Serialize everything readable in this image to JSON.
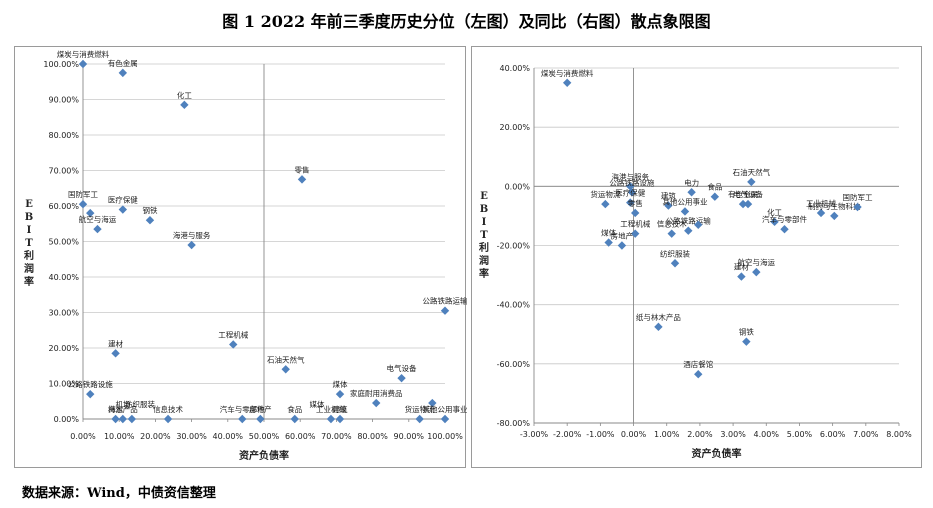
{
  "title": "图 1    2022 年前三季度历史分位（左图）及同比（右图）散点象限图",
  "source": "数据来源：Wind，中债资信整理",
  "chart_data": [
    {
      "type": "scatter",
      "xlabel": "资产负债率",
      "ylabel": "EBIT利润率",
      "xlim": [
        0,
        1
      ],
      "ylim": [
        0,
        1
      ],
      "x_ticks": [
        "0.00%",
        "10.00%",
        "20.00%",
        "30.00%",
        "40.00%",
        "50.00%",
        "60.00%",
        "70.00%",
        "80.00%",
        "90.00%",
        "100.00%"
      ],
      "y_ticks": [
        "0.00%",
        "10.00%",
        "20.00%",
        "30.00%",
        "40.00%",
        "50.00%",
        "60.00%",
        "70.00%",
        "80.00%",
        "90.00%",
        "100.00%"
      ],
      "marker_color": "#4f81bd",
      "points": [
        {
          "label": "煤炭与消费燃料",
          "x": 0.0,
          "y": 1.0
        },
        {
          "label": "有色金属",
          "x": 0.11,
          "y": 0.975
        },
        {
          "label": "化工",
          "x": 0.28,
          "y": 0.885
        },
        {
          "label": "零售",
          "x": 0.605,
          "y": 0.675
        },
        {
          "label": "国防军工",
          "x": 0.0,
          "y": 0.605
        },
        {
          "label": "",
          "x": 0.02,
          "y": 0.58
        },
        {
          "label": "医疗保健",
          "x": 0.11,
          "y": 0.59
        },
        {
          "label": "钢铁",
          "x": 0.185,
          "y": 0.56
        },
        {
          "label": "航空与海运",
          "x": 0.04,
          "y": 0.535
        },
        {
          "label": "海港与服务",
          "x": 0.3,
          "y": 0.49
        },
        {
          "label": "公路铁路运输",
          "x": 1.0,
          "y": 0.305
        },
        {
          "label": "工程机械",
          "x": 0.415,
          "y": 0.21
        },
        {
          "label": "建材",
          "x": 0.09,
          "y": 0.185
        },
        {
          "label": "石油天然气",
          "x": 0.56,
          "y": 0.14
        },
        {
          "label": "电气设备",
          "x": 0.88,
          "y": 0.115
        },
        {
          "label": "公路铁路设施",
          "x": 0.02,
          "y": 0.07
        },
        {
          "label": "煤体",
          "x": 0.71,
          "y": 0.07
        },
        {
          "label": "家庭耐用消费品",
          "x": 0.81,
          "y": 0.045
        },
        {
          "label": "",
          "x": 0.965,
          "y": 0.045
        },
        {
          "label": "海运",
          "x": 0.09,
          "y": 0.0
        },
        {
          "label": "林木产品",
          "x": 0.11,
          "y": 0.0
        },
        {
          "label": "",
          "x": 0.135,
          "y": 0.0
        },
        {
          "label": "信息技术",
          "x": 0.235,
          "y": 0.0
        },
        {
          "label": "汽车与零部件",
          "x": 0.44,
          "y": 0.0
        },
        {
          "label": "房地产",
          "x": 0.49,
          "y": 0.0
        },
        {
          "label": "食品",
          "x": 0.585,
          "y": 0.0
        },
        {
          "label": "工业机械",
          "x": 0.685,
          "y": 0.0
        },
        {
          "label": "建筑",
          "x": 0.71,
          "y": 0.0
        },
        {
          "label": "货运物流",
          "x": 0.93,
          "y": 0.0
        },
        {
          "label": "其他公用事业",
          "x": 1.0,
          "y": 0.0
        }
      ],
      "extra_labels": [
        "机场",
        "纺织服装",
        "媒体"
      ]
    },
    {
      "type": "scatter",
      "xlabel": "资产负债率",
      "ylabel": "EBIT利润率",
      "xlim": [
        -0.03,
        0.08
      ],
      "ylim": [
        -0.8,
        0.4
      ],
      "x_ticks": [
        "-3.00%",
        "-2.00%",
        "-1.00%",
        "0.00%",
        "1.00%",
        "2.00%",
        "3.00%",
        "4.00%",
        "5.00%",
        "6.00%",
        "7.00%",
        "8.00%"
      ],
      "y_ticks": [
        "40.00%",
        "20.00%",
        "0.00%",
        "-20.00%",
        "-40.00%",
        "-60.00%",
        "-80.00%"
      ],
      "marker_color": "#4f81bd",
      "points": [
        {
          "label": "煤炭与消费燃料",
          "x": -0.02,
          "y": 0.35
        },
        {
          "label": "石油天然气",
          "x": 0.0355,
          "y": 0.015
        },
        {
          "label": "海港与服务",
          "x": -0.001,
          "y": 0.0
        },
        {
          "label": "电力",
          "x": 0.0175,
          "y": -0.02
        },
        {
          "label": "食品",
          "x": 0.0245,
          "y": -0.035
        },
        {
          "label": "公路铁路设施",
          "x": -0.0005,
          "y": -0.02
        },
        {
          "label": "货运物流",
          "x": -0.0085,
          "y": -0.06
        },
        {
          "label": "医疗保健",
          "x": -0.001,
          "y": -0.055
        },
        {
          "label": "建筑",
          "x": 0.0105,
          "y": -0.065
        },
        {
          "label": "零售",
          "x": 0.0005,
          "y": -0.09
        },
        {
          "label": "其他公用事业",
          "x": 0.0155,
          "y": -0.085
        },
        {
          "label": "有色金属",
          "x": 0.033,
          "y": -0.06
        },
        {
          "label": "电气设备",
          "x": 0.0345,
          "y": -0.06
        },
        {
          "label": "工业机械",
          "x": 0.0565,
          "y": -0.09
        },
        {
          "label": "制药与生物科技",
          "x": 0.0605,
          "y": -0.1
        },
        {
          "label": "国防军工",
          "x": 0.0675,
          "y": -0.07
        },
        {
          "label": "工程机械",
          "x": 0.0005,
          "y": -0.16
        },
        {
          "label": "信息技术",
          "x": 0.0115,
          "y": -0.16
        },
        {
          "label": "公路铁路运输",
          "x": 0.0165,
          "y": -0.15
        },
        {
          "label": "",
          "x": 0.0195,
          "y": -0.13
        },
        {
          "label": "化工",
          "x": 0.0425,
          "y": -0.12
        },
        {
          "label": "汽车与零部件",
          "x": 0.0455,
          "y": -0.145
        },
        {
          "label": "煤体",
          "x": -0.0075,
          "y": -0.19
        },
        {
          "label": "房地产",
          "x": -0.0035,
          "y": -0.2
        },
        {
          "label": "纺织服装",
          "x": 0.0125,
          "y": -0.26
        },
        {
          "label": "航空与海运",
          "x": 0.037,
          "y": -0.29
        },
        {
          "label": "建材",
          "x": 0.0325,
          "y": -0.305
        },
        {
          "label": "纸与林木产品",
          "x": 0.0075,
          "y": -0.475
        },
        {
          "label": "钢铁",
          "x": 0.034,
          "y": -0.525
        },
        {
          "label": "酒店餐馆",
          "x": 0.0195,
          "y": -0.635
        }
      ]
    }
  ]
}
